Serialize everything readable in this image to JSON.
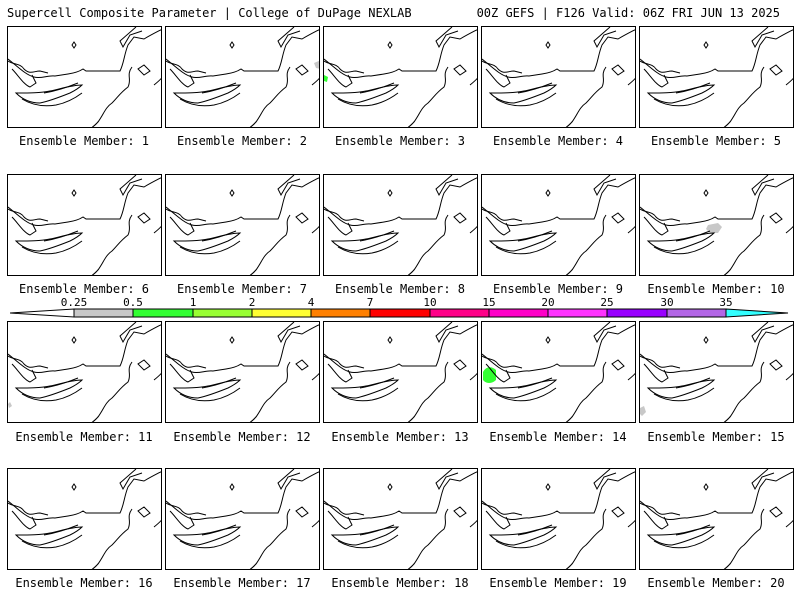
{
  "header": {
    "title": "Supercell Composite Parameter | College of DuPage NEXLAB",
    "run_info": "00Z GEFS | F126 Valid: 06Z FRI JUN 13 2025"
  },
  "colorbar": {
    "ticks": [
      "0.25",
      "0.5",
      "1",
      "2",
      "4",
      "7",
      "10",
      "15",
      "20",
      "25",
      "30",
      "35"
    ],
    "colors": [
      "#c8c8c8",
      "#33ff33",
      "#99ff33",
      "#ffff33",
      "#ff8000",
      "#ff0000",
      "#ff0088",
      "#ff00c8",
      "#ff33ff",
      "#9900ff",
      "#b366e6",
      "#33ffff"
    ]
  },
  "panels": [
    {
      "label": "Ensemble Member: 1"
    },
    {
      "label": "Ensemble Member: 2"
    },
    {
      "label": "Ensemble Member: 3"
    },
    {
      "label": "Ensemble Member: 4"
    },
    {
      "label": "Ensemble Member: 5"
    },
    {
      "label": "Ensemble Member: 6"
    },
    {
      "label": "Ensemble Member: 7"
    },
    {
      "label": "Ensemble Member: 8"
    },
    {
      "label": "Ensemble Member: 9"
    },
    {
      "label": "Ensemble Member: 10"
    },
    {
      "label": "Ensemble Member: 11"
    },
    {
      "label": "Ensemble Member: 12"
    },
    {
      "label": "Ensemble Member: 13"
    },
    {
      "label": "Ensemble Member: 14"
    },
    {
      "label": "Ensemble Member: 15"
    },
    {
      "label": "Ensemble Member: 16"
    },
    {
      "label": "Ensemble Member: 17"
    },
    {
      "label": "Ensemble Member: 18"
    },
    {
      "label": "Ensemble Member: 19"
    },
    {
      "label": "Ensemble Member: 20"
    }
  ]
}
